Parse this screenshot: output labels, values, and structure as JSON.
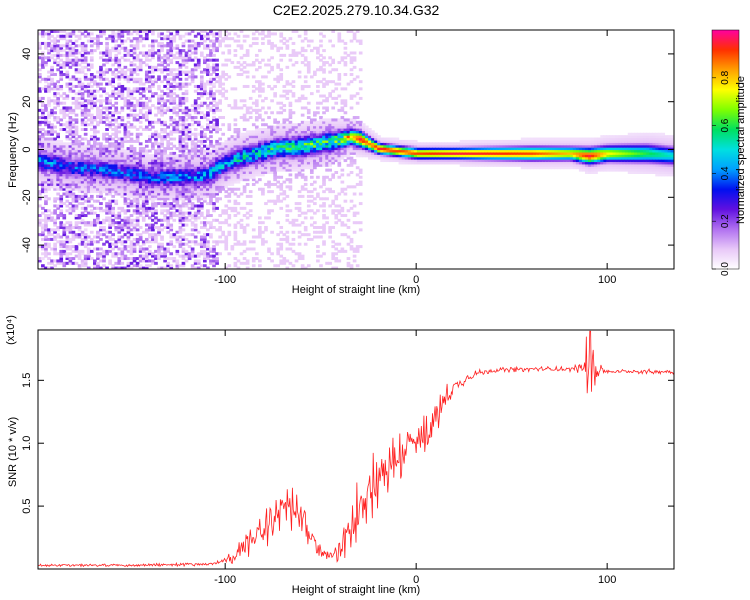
{
  "figure_title": "C2E2.2025.279.10.34.G32",
  "colorbar": {
    "label": "Normalized spectral amplitude",
    "range": [
      0,
      1
    ],
    "ticks": [
      "0.0",
      "0.2",
      "0.4",
      "0.6",
      "0.8"
    ],
    "tick_values": [
      0,
      0.2,
      0.4,
      0.6,
      0.8
    ],
    "stops": [
      "#ffffff",
      "#e8c8f8",
      "#b070f0",
      "#6010e0",
      "#0010f0",
      "#00a0ff",
      "#00e0e0",
      "#00e060",
      "#80ff00",
      "#ffff00",
      "#ffa000",
      "#ff3000",
      "#ff00a0"
    ]
  },
  "chart_data": [
    {
      "type": "heatmap",
      "name": "spectrogram",
      "xlabel": "Height of straight line (km)",
      "ylabel": "Frequency (Hz)",
      "xlim": [
        -198,
        135
      ],
      "ylim": [
        -50,
        50
      ],
      "xticks": [
        -100,
        0,
        100
      ],
      "xtick_labels": [
        "-100",
        "0",
        "100"
      ],
      "yticks": [
        40,
        20,
        0,
        -20,
        -40
      ],
      "ytick_labels": [
        "40",
        "20",
        "0",
        "-20",
        "-40"
      ],
      "ridge": {
        "x": [
          -198,
          -180,
          -160,
          -140,
          -125,
          -110,
          -100,
          -90,
          -75,
          -60,
          -45,
          -35,
          -30,
          -25,
          -20,
          -10,
          0,
          20,
          60,
          80,
          90,
          100,
          120,
          135
        ],
        "freq_hz": [
          -5,
          -8,
          -9,
          -12,
          -12,
          -11,
          -6,
          -3,
          0,
          1,
          3,
          5,
          4,
          2,
          0,
          -1,
          -2,
          -2,
          -2,
          -2,
          -3,
          -2,
          -2,
          -3
        ],
        "amplitude": [
          0.4,
          0.35,
          0.35,
          0.35,
          0.4,
          0.4,
          0.45,
          0.5,
          0.5,
          0.55,
          0.55,
          0.75,
          0.95,
          0.85,
          0.95,
          0.9,
          0.9,
          0.95,
          0.9,
          0.8,
          0.95,
          0.75,
          0.6,
          0.5
        ],
        "width_hz": [
          4,
          4,
          4,
          4,
          4,
          4,
          4,
          4,
          4,
          4,
          4,
          3,
          3,
          2.5,
          2,
          2,
          2,
          2,
          2.5,
          2.5,
          3,
          3,
          3.5,
          3.5
        ]
      }
    },
    {
      "type": "line",
      "name": "snr",
      "color": "#ff2020",
      "xlabel": "Height of straight line (km)",
      "ylabel": "SNR (10 * v/v)",
      "y_multiplier_label": "(x10⁴)",
      "xlim": [
        -198,
        135
      ],
      "ylim": [
        0,
        1.9
      ],
      "xticks": [
        -100,
        0,
        100
      ],
      "xtick_labels": [
        "-100",
        "0",
        "100"
      ],
      "yticks": [
        0.5,
        1.0,
        1.5
      ],
      "ytick_labels": [
        "0.5",
        "1.0",
        "1.5"
      ],
      "envelope": {
        "x": [
          -198,
          -150,
          -105,
          -95,
          -90,
          -80,
          -75,
          -70,
          -65,
          -60,
          -55,
          -50,
          -45,
          -40,
          -35,
          -30,
          -25,
          -20,
          -15,
          -10,
          -5,
          0,
          5,
          10,
          15,
          20,
          25,
          30,
          40,
          60,
          80,
          88,
          92,
          96,
          100,
          120,
          135
        ],
        "y": [
          0.03,
          0.03,
          0.04,
          0.1,
          0.18,
          0.3,
          0.42,
          0.5,
          0.48,
          0.4,
          0.25,
          0.14,
          0.1,
          0.15,
          0.3,
          0.5,
          0.65,
          0.75,
          0.82,
          0.88,
          0.95,
          1.0,
          1.05,
          1.2,
          1.35,
          1.45,
          1.5,
          1.55,
          1.58,
          1.59,
          1.59,
          1.6,
          1.65,
          1.58,
          1.57,
          1.57,
          1.57
        ],
        "noise": [
          0.01,
          0.01,
          0.015,
          0.06,
          0.1,
          0.16,
          0.22,
          0.25,
          0.22,
          0.18,
          0.1,
          0.05,
          0.06,
          0.12,
          0.2,
          0.28,
          0.3,
          0.28,
          0.26,
          0.25,
          0.22,
          0.2,
          0.2,
          0.2,
          0.12,
          0.07,
          0.04,
          0.03,
          0.02,
          0.02,
          0.02,
          0.05,
          0.2,
          0.05,
          0.02,
          0.02,
          0.02
        ]
      }
    }
  ]
}
